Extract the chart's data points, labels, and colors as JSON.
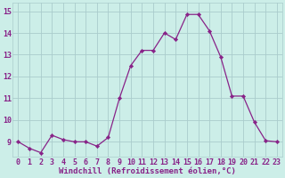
{
  "x": [
    0,
    1,
    2,
    3,
    4,
    5,
    6,
    7,
    8,
    9,
    10,
    11,
    12,
    13,
    14,
    15,
    16,
    17,
    18,
    19,
    20,
    21,
    22,
    23
  ],
  "y": [
    9.0,
    8.7,
    8.5,
    9.3,
    9.1,
    9.0,
    9.0,
    8.8,
    9.2,
    11.0,
    12.5,
    13.2,
    13.2,
    14.0,
    13.7,
    14.85,
    14.85,
    14.1,
    12.9,
    11.1,
    11.1,
    9.9,
    9.05,
    9.0
  ],
  "line_color": "#882288",
  "marker": "D",
  "marker_size": 2.2,
  "bg_color": "#cceee8",
  "grid_color": "#aacccc",
  "xlabel": "Windchill (Refroidissement éolien,°C)",
  "xlabel_fontsize": 6.5,
  "xtick_labels": [
    "0",
    "1",
    "2",
    "3",
    "4",
    "5",
    "6",
    "7",
    "8",
    "9",
    "10",
    "11",
    "12",
    "13",
    "14",
    "15",
    "16",
    "17",
    "18",
    "19",
    "20",
    "21",
    "22",
    "23"
  ],
  "ytick_vals": [
    9,
    10,
    11,
    12,
    13,
    14,
    15
  ],
  "ytick_labels": [
    "9",
    "10",
    "11",
    "12",
    "13",
    "14",
    "15"
  ],
  "ylim": [
    8.3,
    15.4
  ],
  "xlim": [
    -0.5,
    23.5
  ],
  "tick_fontsize": 6.0,
  "label_color": "#882288"
}
